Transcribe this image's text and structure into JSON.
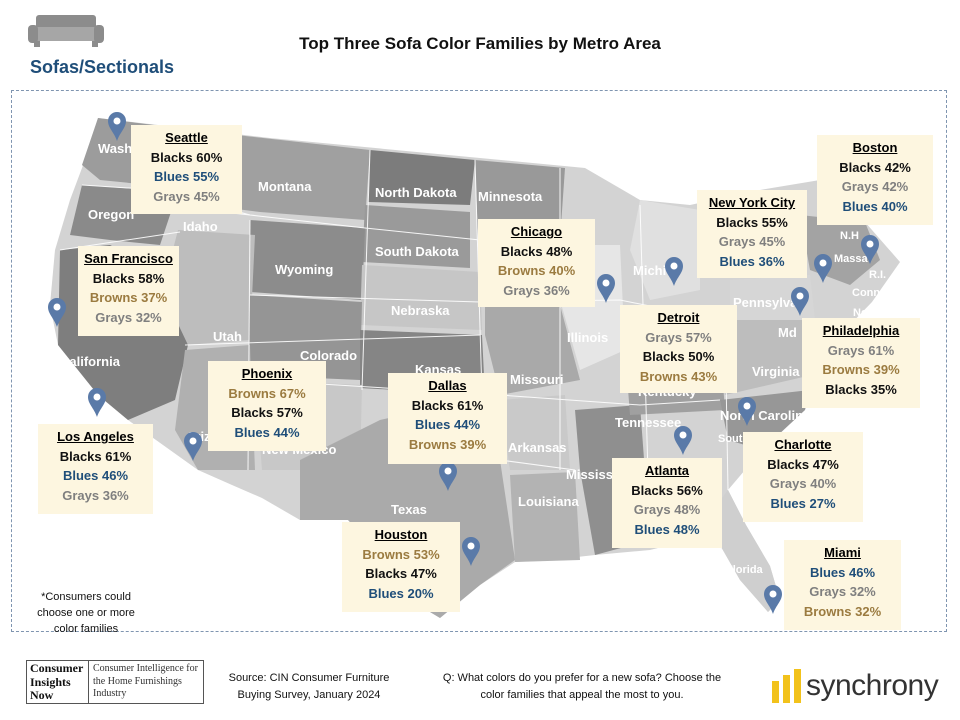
{
  "title": "Top Three Sofa Color Families by Metro Area",
  "section": "Sofas/Sectionals",
  "colors": {
    "Blacks": "#111111",
    "Blues": "#1f4e79",
    "Grays": "#7f7f7f",
    "Browns": "#9b7b40",
    "card_bg": "#fdf6e0",
    "pin": "#5a7aa8"
  },
  "state_labels": [
    "Wash",
    "Oregon",
    "Idaho",
    "Montana",
    "North Dakota",
    "Minnesota",
    "South Dakota",
    "Wyoming",
    "Nebraska",
    "Utah",
    "Colorado",
    "California",
    "Kansas",
    "Missouri",
    "Illinois",
    "Michi",
    "Pennsylva",
    "Md",
    "Virginia",
    "North Carolina",
    "South",
    "Tennessee",
    "Kentucky",
    "Arkansas",
    "Mississ",
    "Louisiana",
    "Texas",
    "New Mexico",
    "Ariz",
    "Florida",
    "Massa",
    "N.H",
    "R.I.",
    "Conn.",
    "New Jersey"
  ],
  "chart_data": {
    "type": "table",
    "title": "Top Three Sofa Color Families by Metro Area",
    "metros": [
      {
        "city": "Seattle",
        "top3": [
          {
            "family": "Blacks",
            "pct": 60
          },
          {
            "family": "Blues",
            "pct": 55
          },
          {
            "family": "Grays",
            "pct": 45
          }
        ],
        "label": [
          "Blacks 60%",
          "Blues 55%",
          "Grays 45%"
        ]
      },
      {
        "city": "San Francisco",
        "top3": [
          {
            "family": "Blacks",
            "pct": 58
          },
          {
            "family": "Browns",
            "pct": 37
          },
          {
            "family": "Grays",
            "pct": 32
          }
        ],
        "label": [
          "Blacks 58%",
          "Browns 37%",
          "Grays 32%"
        ]
      },
      {
        "city": "Los Angeles",
        "top3": [
          {
            "family": "Blacks",
            "pct": 61
          },
          {
            "family": "Blues",
            "pct": 46
          },
          {
            "family": "Grays",
            "pct": 36
          }
        ],
        "label": [
          "Blacks 61%",
          "Blues 46%",
          "Grays 36%"
        ]
      },
      {
        "city": "Phoenix",
        "top3": [
          {
            "family": "Browns",
            "pct": 67
          },
          {
            "family": "Blacks",
            "pct": 57
          },
          {
            "family": "Blues",
            "pct": 44
          }
        ],
        "label": [
          "Browns 67%",
          "Blacks 57%",
          "Blues 44%"
        ]
      },
      {
        "city": "Dallas",
        "top3": [
          {
            "family": "Blacks",
            "pct": 61
          },
          {
            "family": "Blues",
            "pct": 44
          },
          {
            "family": "Browns",
            "pct": 39
          }
        ],
        "label": [
          "Blacks 61%",
          "Blues 44%",
          "Browns 39%"
        ]
      },
      {
        "city": "Houston",
        "top3": [
          {
            "family": "Browns",
            "pct": 53
          },
          {
            "family": "Blacks",
            "pct": 47
          },
          {
            "family": "Blues",
            "pct": 20
          }
        ],
        "label": [
          "Browns 53%",
          "Blacks 47%",
          "Blues 20%"
        ]
      },
      {
        "city": "Chicago",
        "top3": [
          {
            "family": "Blacks",
            "pct": 48
          },
          {
            "family": "Browns",
            "pct": 40
          },
          {
            "family": "Grays",
            "pct": 36
          }
        ],
        "label": [
          "Blacks 48%",
          "Browns 40%",
          "Grays 36%"
        ]
      },
      {
        "city": "Detroit",
        "top3": [
          {
            "family": "Grays",
            "pct": 57
          },
          {
            "family": "Blacks",
            "pct": 50
          },
          {
            "family": "Browns",
            "pct": 43
          }
        ],
        "label": [
          "Grays 57%",
          "Blacks 50%",
          "Browns 43%"
        ]
      },
      {
        "city": "Atlanta",
        "top3": [
          {
            "family": "Blacks",
            "pct": 56
          },
          {
            "family": "Grays",
            "pct": 48
          },
          {
            "family": "Blues",
            "pct": 48
          }
        ],
        "label": [
          "Blacks 56%",
          "Grays 48%",
          "Blues 48%"
        ]
      },
      {
        "city": "New York City",
        "top3": [
          {
            "family": "Blacks",
            "pct": 55
          },
          {
            "family": "Grays",
            "pct": 45
          },
          {
            "family": "Blues",
            "pct": 36
          }
        ],
        "label": [
          "Blacks 55%",
          "Grays 45%",
          "Blues 36%"
        ]
      },
      {
        "city": "Boston",
        "top3": [
          {
            "family": "Blacks",
            "pct": 42
          },
          {
            "family": "Grays",
            "pct": 42
          },
          {
            "family": "Blues",
            "pct": 40
          }
        ],
        "label": [
          "Blacks 42%",
          "Grays 42%",
          "Blues 40%"
        ]
      },
      {
        "city": "Philadelphia",
        "top3": [
          {
            "family": "Grays",
            "pct": 61
          },
          {
            "family": "Browns",
            "pct": 39
          },
          {
            "family": "Blacks",
            "pct": 35
          }
        ],
        "label": [
          "Grays 61%",
          "Browns 39%",
          "Blacks 35%"
        ]
      },
      {
        "city": "Charlotte",
        "top3": [
          {
            "family": "Blacks",
            "pct": 47
          },
          {
            "family": "Grays",
            "pct": 40
          },
          {
            "family": "Blues",
            "pct": 27
          }
        ],
        "label": [
          "Blacks 47%",
          "Grays 40%",
          "Blues 27%"
        ]
      },
      {
        "city": "Miami",
        "top3": [
          {
            "family": "Blues",
            "pct": 46
          },
          {
            "family": "Grays",
            "pct": 32
          },
          {
            "family": "Browns",
            "pct": 32
          }
        ],
        "label": [
          "Blues 46%",
          "Grays 32%",
          "Browns 32%"
        ]
      }
    ]
  },
  "footnote": "*Consumers could choose one or more color families",
  "source": "Source: CIN Consumer Furniture Buying Survey, January 2024",
  "question": "Q: What colors do you prefer for a new sofa? Choose the color families that appeal the most to you.",
  "logos": {
    "cin_left": "Consumer Insights Now",
    "cin_right": "Consumer Intelligence for the Home Furnishings Industry",
    "synchrony": "synchrony"
  },
  "icons": {
    "sofa": "sofa-icon",
    "pin": "map-pin-icon"
  }
}
